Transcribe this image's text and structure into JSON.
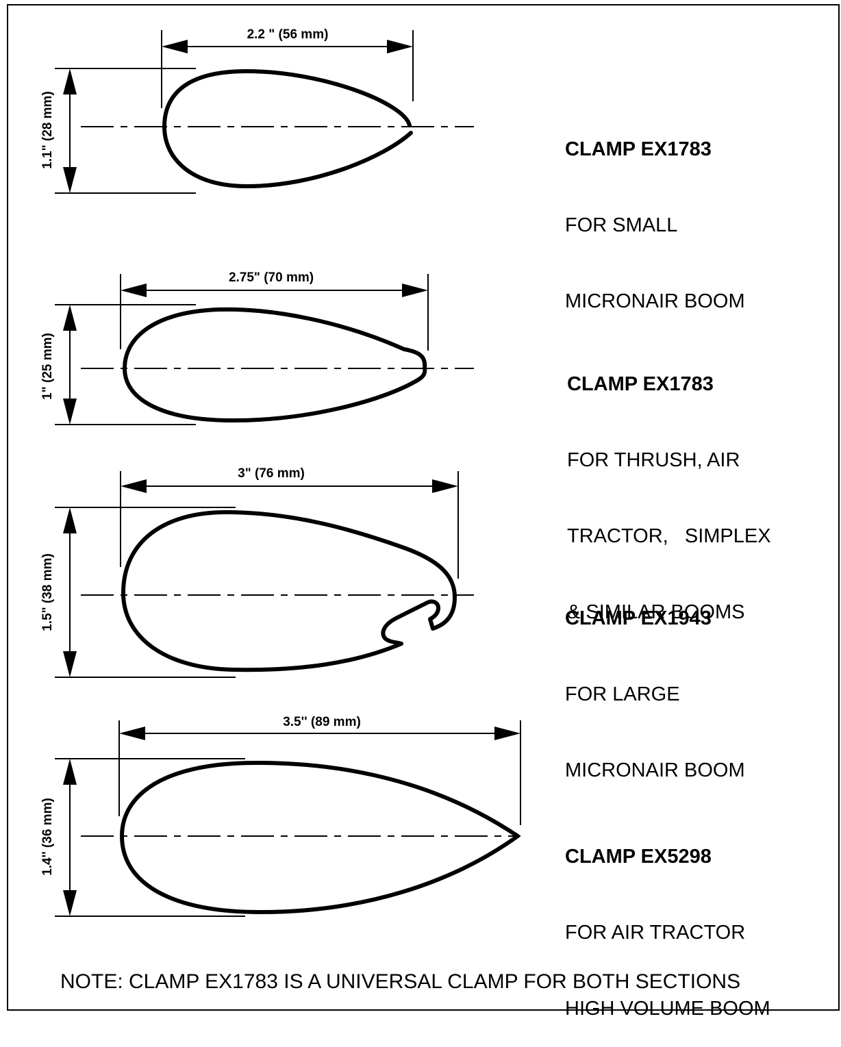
{
  "sections": [
    {
      "width_label": "2.2 \" (56 mm)",
      "height_label": "1.1\" (28 mm)",
      "clamp_name": "CLAMP EX1783",
      "description_lines": [
        "FOR SMALL",
        "MICRONAIR BOOM"
      ]
    },
    {
      "width_label": "2.75\" (70 mm)",
      "height_label": "1\" (25 mm)",
      "clamp_name": "CLAMP EX1783",
      "description_lines": [
        "FOR THRUSH, AIR",
        "TRACTOR,   SIMPLEX",
        "& SIMILAR BOOMS"
      ]
    },
    {
      "width_label": "3\" (76 mm)",
      "height_label": "1.5\" (38 mm)",
      "clamp_name": "CLAMP EX1943",
      "description_lines": [
        "FOR LARGE",
        "MICRONAIR BOOM"
      ]
    },
    {
      "width_label": "3.5'' (89 mm)",
      "height_label": "1.4'' (36 mm)",
      "clamp_name": "CLAMP EX5298",
      "description_lines": [
        "FOR AIR TRACTOR",
        "HIGH VOLUME BOOM"
      ]
    }
  ],
  "note": "NOTE:  CLAMP EX1783 IS A UNIVERSAL CLAMP FOR BOTH SECTIONS"
}
